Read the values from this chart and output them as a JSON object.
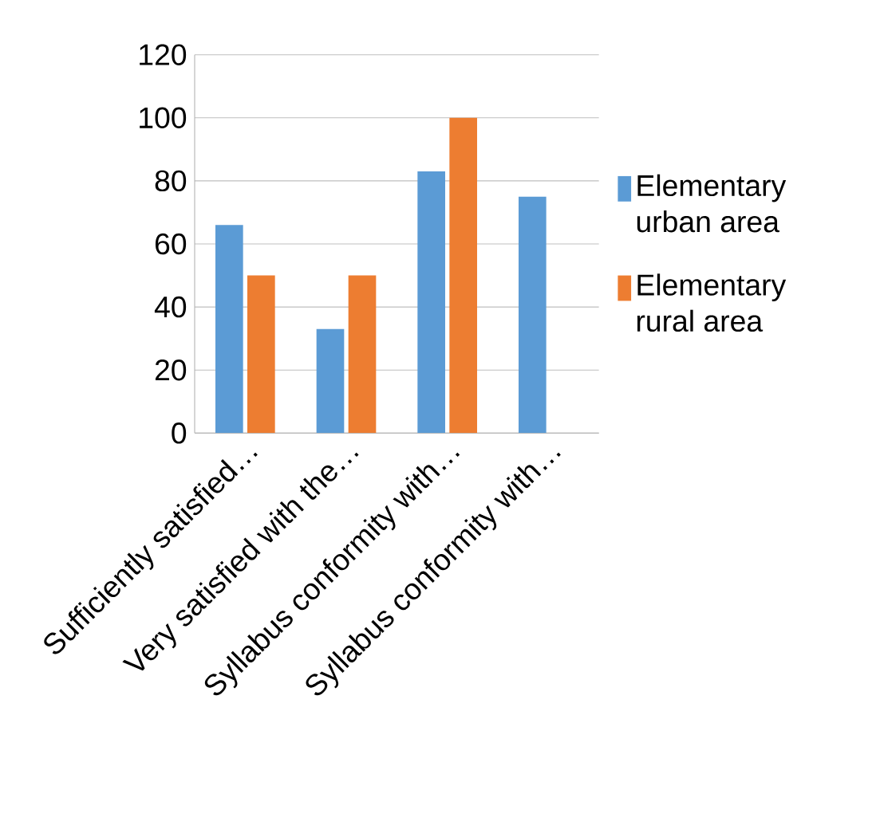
{
  "chart_data": {
    "type": "bar",
    "categories": [
      "Sufficiently satisfied…",
      "Very satisfied with the…",
      "Syllabus conformity with…",
      "Syllabus conformity with…"
    ],
    "series": [
      {
        "name": "Elementary urban area",
        "color": "#5b9bd5",
        "values": [
          66,
          33,
          83,
          75
        ]
      },
      {
        "name": "Elementary rural area",
        "color": "#ed7d31",
        "values": [
          50,
          50,
          100,
          0
        ]
      }
    ],
    "ylim": [
      0,
      120
    ],
    "yticks": [
      0,
      20,
      40,
      60,
      80,
      100,
      120
    ],
    "grid": "y",
    "legend": "right"
  }
}
